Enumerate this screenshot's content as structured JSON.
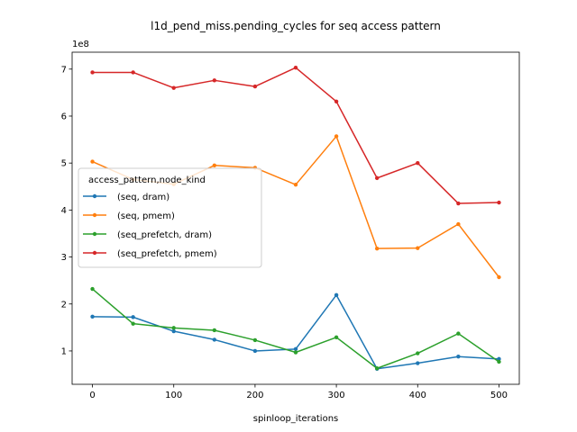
{
  "chart_data": {
    "type": "line",
    "title": "l1d_pend_miss.pending_cycles for seq access pattern",
    "xlabel": "spinloop_iterations",
    "ylabel": "",
    "y_scale_label": "1e8",
    "x": [
      0,
      50,
      100,
      150,
      200,
      250,
      300,
      350,
      400,
      450,
      500
    ],
    "xlim": [
      -25,
      525
    ],
    "ylim": [
      0.29,
      7.36
    ],
    "xticks": [
      0,
      100,
      200,
      300,
      400,
      500
    ],
    "yticks": [
      1,
      2,
      3,
      4,
      5,
      6,
      7
    ],
    "grid": false,
    "legend": {
      "title": "access_pattern,node_kind",
      "placement": "center-left"
    },
    "series": [
      {
        "name": "(seq, dram)",
        "color": "#1f77b4",
        "values": [
          1.73,
          1.72,
          1.42,
          1.24,
          1.0,
          1.04,
          2.19,
          0.62,
          0.74,
          0.88,
          0.83
        ]
      },
      {
        "name": "(seq, pmem)",
        "color": "#ff7f0e",
        "values": [
          5.03,
          4.65,
          4.55,
          4.95,
          4.9,
          4.54,
          5.57,
          3.18,
          3.19,
          3.7,
          2.57
        ]
      },
      {
        "name": "(seq_prefetch, dram)",
        "color": "#2ca02c",
        "values": [
          2.32,
          1.58,
          1.49,
          1.44,
          1.23,
          0.97,
          1.29,
          0.63,
          0.95,
          1.37,
          0.77
        ]
      },
      {
        "name": "(seq_prefetch, pmem)",
        "color": "#d62728",
        "values": [
          6.93,
          6.93,
          6.6,
          6.76,
          6.63,
          7.03,
          6.31,
          4.68,
          5.0,
          4.14,
          4.16
        ]
      }
    ]
  }
}
